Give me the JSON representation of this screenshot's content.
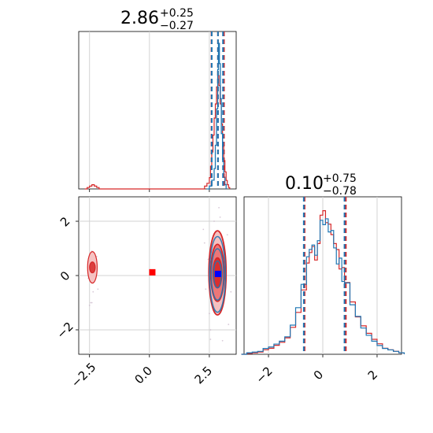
{
  "chart_data": {
    "type": "corner",
    "colors": {
      "blue": "#1f77b4",
      "red": "#d62728",
      "red_fill": "#f4b9b9",
      "grid": "#d3d3d3",
      "true_marker": "#ff0000",
      "estimate_marker": "#0000ff"
    },
    "parameters": [
      {
        "title": "2.86",
        "title_upper": "+0.25",
        "title_lower": "−0.27",
        "median": 2.86,
        "upper_error": 0.25,
        "lower_error": 0.27,
        "range": [
          -2.95,
          3.62
        ]
      },
      {
        "title": "0.10",
        "title_upper": "+0.75",
        "title_lower": "−0.78",
        "median": 0.1,
        "upper_error": 0.75,
        "lower_error": 0.78,
        "range": [
          -2.9,
          2.9
        ]
      }
    ],
    "x_axis_ticks_param1": {
      "values": [
        -2.5,
        0.0,
        2.5
      ],
      "labels": [
        "−2.5",
        "0.0",
        "2.5"
      ]
    },
    "y_axis_ticks_param2": {
      "values": [
        -2,
        0,
        2
      ],
      "labels": [
        "−2",
        "0",
        "2"
      ]
    },
    "x_axis_ticks_param2": {
      "values": [
        -2,
        0,
        2
      ],
      "labels": [
        "−2",
        "0",
        "2"
      ]
    },
    "marginal_1": {
      "quantile_lines": {
        "red": [
          2.59,
          2.86,
          3.11
        ],
        "blue": [
          2.6,
          2.86,
          3.07
        ]
      },
      "histogram_red": [
        [
          -2.7,
          0.0
        ],
        [
          -2.6,
          0.01
        ],
        [
          -2.5,
          0.02
        ],
        [
          -2.4,
          0.03
        ],
        [
          -2.3,
          0.02
        ],
        [
          -2.2,
          0.01
        ],
        [
          -2.1,
          0.0
        ],
        [
          2.2,
          0.0
        ],
        [
          2.3,
          0.02
        ],
        [
          2.4,
          0.04
        ],
        [
          2.5,
          0.08
        ],
        [
          2.55,
          0.16
        ],
        [
          2.6,
          0.26
        ],
        [
          2.65,
          0.38
        ],
        [
          2.7,
          0.5
        ],
        [
          2.75,
          0.6
        ],
        [
          2.8,
          0.72
        ],
        [
          2.85,
          0.8
        ],
        [
          2.9,
          0.73
        ],
        [
          2.95,
          0.6
        ],
        [
          3.0,
          0.46
        ],
        [
          3.05,
          0.3
        ],
        [
          3.1,
          0.2
        ],
        [
          3.15,
          0.12
        ],
        [
          3.2,
          0.06
        ],
        [
          3.25,
          0.03
        ],
        [
          3.3,
          0.01
        ],
        [
          3.35,
          0.0
        ]
      ],
      "histogram_blue": [
        [
          2.4,
          0.0
        ],
        [
          2.5,
          0.02
        ],
        [
          2.6,
          0.06
        ],
        [
          2.7,
          0.14
        ],
        [
          2.75,
          0.3
        ],
        [
          2.8,
          0.55
        ],
        [
          2.85,
          0.82
        ],
        [
          2.88,
          1.0
        ],
        [
          2.92,
          0.86
        ],
        [
          2.96,
          0.62
        ],
        [
          3.0,
          0.38
        ],
        [
          3.05,
          0.2
        ],
        [
          3.1,
          0.08
        ],
        [
          3.15,
          0.03
        ],
        [
          3.2,
          0.0
        ]
      ]
    },
    "joint_2d": {
      "true_point": [
        0.12,
        0.12
      ],
      "estimated_point": [
        2.86,
        0.06
      ],
      "contour_centers": [
        {
          "x": 2.84,
          "y": 0.1,
          "name": "main-mode"
        },
        {
          "x": -2.38,
          "y": 0.3,
          "name": "secondary-mode"
        }
      ],
      "contour_levels": [
        {
          "level": 0.39,
          "rx": 0.18,
          "ry": 0.55
        },
        {
          "level": 0.86,
          "rx": 0.28,
          "ry": 1.05
        },
        {
          "level": 0.99,
          "rx": 0.36,
          "ry": 1.55
        }
      ],
      "secondary_contour_levels": [
        {
          "level": 0.86,
          "rx": 0.12,
          "ry": 0.2
        },
        {
          "level": 0.99,
          "rx": 0.2,
          "ry": 0.58
        }
      ],
      "scatter_points": [
        [
          2.3,
          1.2
        ],
        [
          2.5,
          -1.4
        ],
        [
          3.25,
          1.5
        ],
        [
          3.3,
          -1.8
        ],
        [
          2.95,
          2.15
        ],
        [
          2.45,
          0.6
        ],
        [
          3.1,
          -0.9
        ],
        [
          2.7,
          2.0
        ],
        [
          3.2,
          0.2
        ],
        [
          2.55,
          -2.0
        ],
        [
          3.4,
          -0.6
        ],
        [
          2.35,
          -0.5
        ],
        [
          2.55,
          0.9
        ],
        [
          3.1,
          1.0
        ],
        [
          2.25,
          1.7
        ],
        [
          2.55,
          -2.35
        ],
        [
          3.05,
          -2.4
        ],
        [
          2.9,
          2.5
        ],
        [
          -2.55,
          -0.1
        ],
        [
          -2.2,
          0.7
        ],
        [
          -2.35,
          -0.6
        ],
        [
          -2.4,
          0.9
        ],
        [
          -2.4,
          -1.0
        ],
        [
          -2.15,
          -0.5
        ],
        [
          -2.5,
          -1.1
        ],
        [
          -2.45,
          -1.0
        ]
      ]
    },
    "marginal_2": {
      "quantile_lines": {
        "red": [
          -0.67,
          0.85
        ],
        "blue": [
          -0.7,
          0.8
        ]
      },
      "histogram_blue": [
        [
          -3.0,
          0.0
        ],
        [
          -2.8,
          0.01
        ],
        [
          -2.6,
          0.015
        ],
        [
          -2.4,
          0.02
        ],
        [
          -2.2,
          0.04
        ],
        [
          -2.0,
          0.05
        ],
        [
          -1.8,
          0.07
        ],
        [
          -1.6,
          0.09
        ],
        [
          -1.4,
          0.12
        ],
        [
          -1.2,
          0.2
        ],
        [
          -1.0,
          0.32
        ],
        [
          -0.8,
          0.48
        ],
        [
          -0.6,
          0.67
        ],
        [
          -0.5,
          0.72
        ],
        [
          -0.4,
          0.75
        ],
        [
          -0.3,
          0.68
        ],
        [
          -0.2,
          0.78
        ],
        [
          -0.1,
          0.92
        ],
        [
          0.0,
          0.89
        ],
        [
          0.1,
          0.93
        ],
        [
          0.2,
          0.84
        ],
        [
          0.3,
          0.85
        ],
        [
          0.4,
          0.73
        ],
        [
          0.5,
          0.62
        ],
        [
          0.6,
          0.66
        ],
        [
          0.7,
          0.5
        ],
        [
          0.8,
          0.49
        ],
        [
          1.0,
          0.34
        ],
        [
          1.2,
          0.26
        ],
        [
          1.4,
          0.18
        ],
        [
          1.6,
          0.13
        ],
        [
          1.8,
          0.09
        ],
        [
          2.0,
          0.06
        ],
        [
          2.2,
          0.04
        ],
        [
          2.4,
          0.03
        ],
        [
          2.6,
          0.02
        ],
        [
          2.8,
          0.01
        ],
        [
          3.0,
          0.0
        ]
      ],
      "histogram_red": [
        [
          -3.0,
          0.0
        ],
        [
          -2.8,
          0.005
        ],
        [
          -2.6,
          0.01
        ],
        [
          -2.4,
          0.015
        ],
        [
          -2.2,
          0.03
        ],
        [
          -2.0,
          0.04
        ],
        [
          -1.8,
          0.06
        ],
        [
          -1.6,
          0.08
        ],
        [
          -1.4,
          0.11
        ],
        [
          -1.2,
          0.18
        ],
        [
          -1.0,
          0.28
        ],
        [
          -0.8,
          0.43
        ],
        [
          -0.6,
          0.61
        ],
        [
          -0.5,
          0.68
        ],
        [
          -0.4,
          0.72
        ],
        [
          -0.3,
          0.63
        ],
        [
          -0.2,
          0.74
        ],
        [
          -0.1,
          0.93
        ],
        [
          0.0,
          0.96
        ],
        [
          0.1,
          0.88
        ],
        [
          0.2,
          0.87
        ],
        [
          0.3,
          0.8
        ],
        [
          0.4,
          0.74
        ],
        [
          0.5,
          0.7
        ],
        [
          0.6,
          0.57
        ],
        [
          0.7,
          0.58
        ],
        [
          0.8,
          0.48
        ],
        [
          1.0,
          0.35
        ],
        [
          1.2,
          0.25
        ],
        [
          1.4,
          0.19
        ],
        [
          1.6,
          0.14
        ],
        [
          1.8,
          0.1
        ],
        [
          2.0,
          0.07
        ],
        [
          2.2,
          0.04
        ],
        [
          2.4,
          0.03
        ],
        [
          2.6,
          0.02
        ],
        [
          2.8,
          0.01
        ],
        [
          3.0,
          0.0
        ]
      ]
    }
  }
}
